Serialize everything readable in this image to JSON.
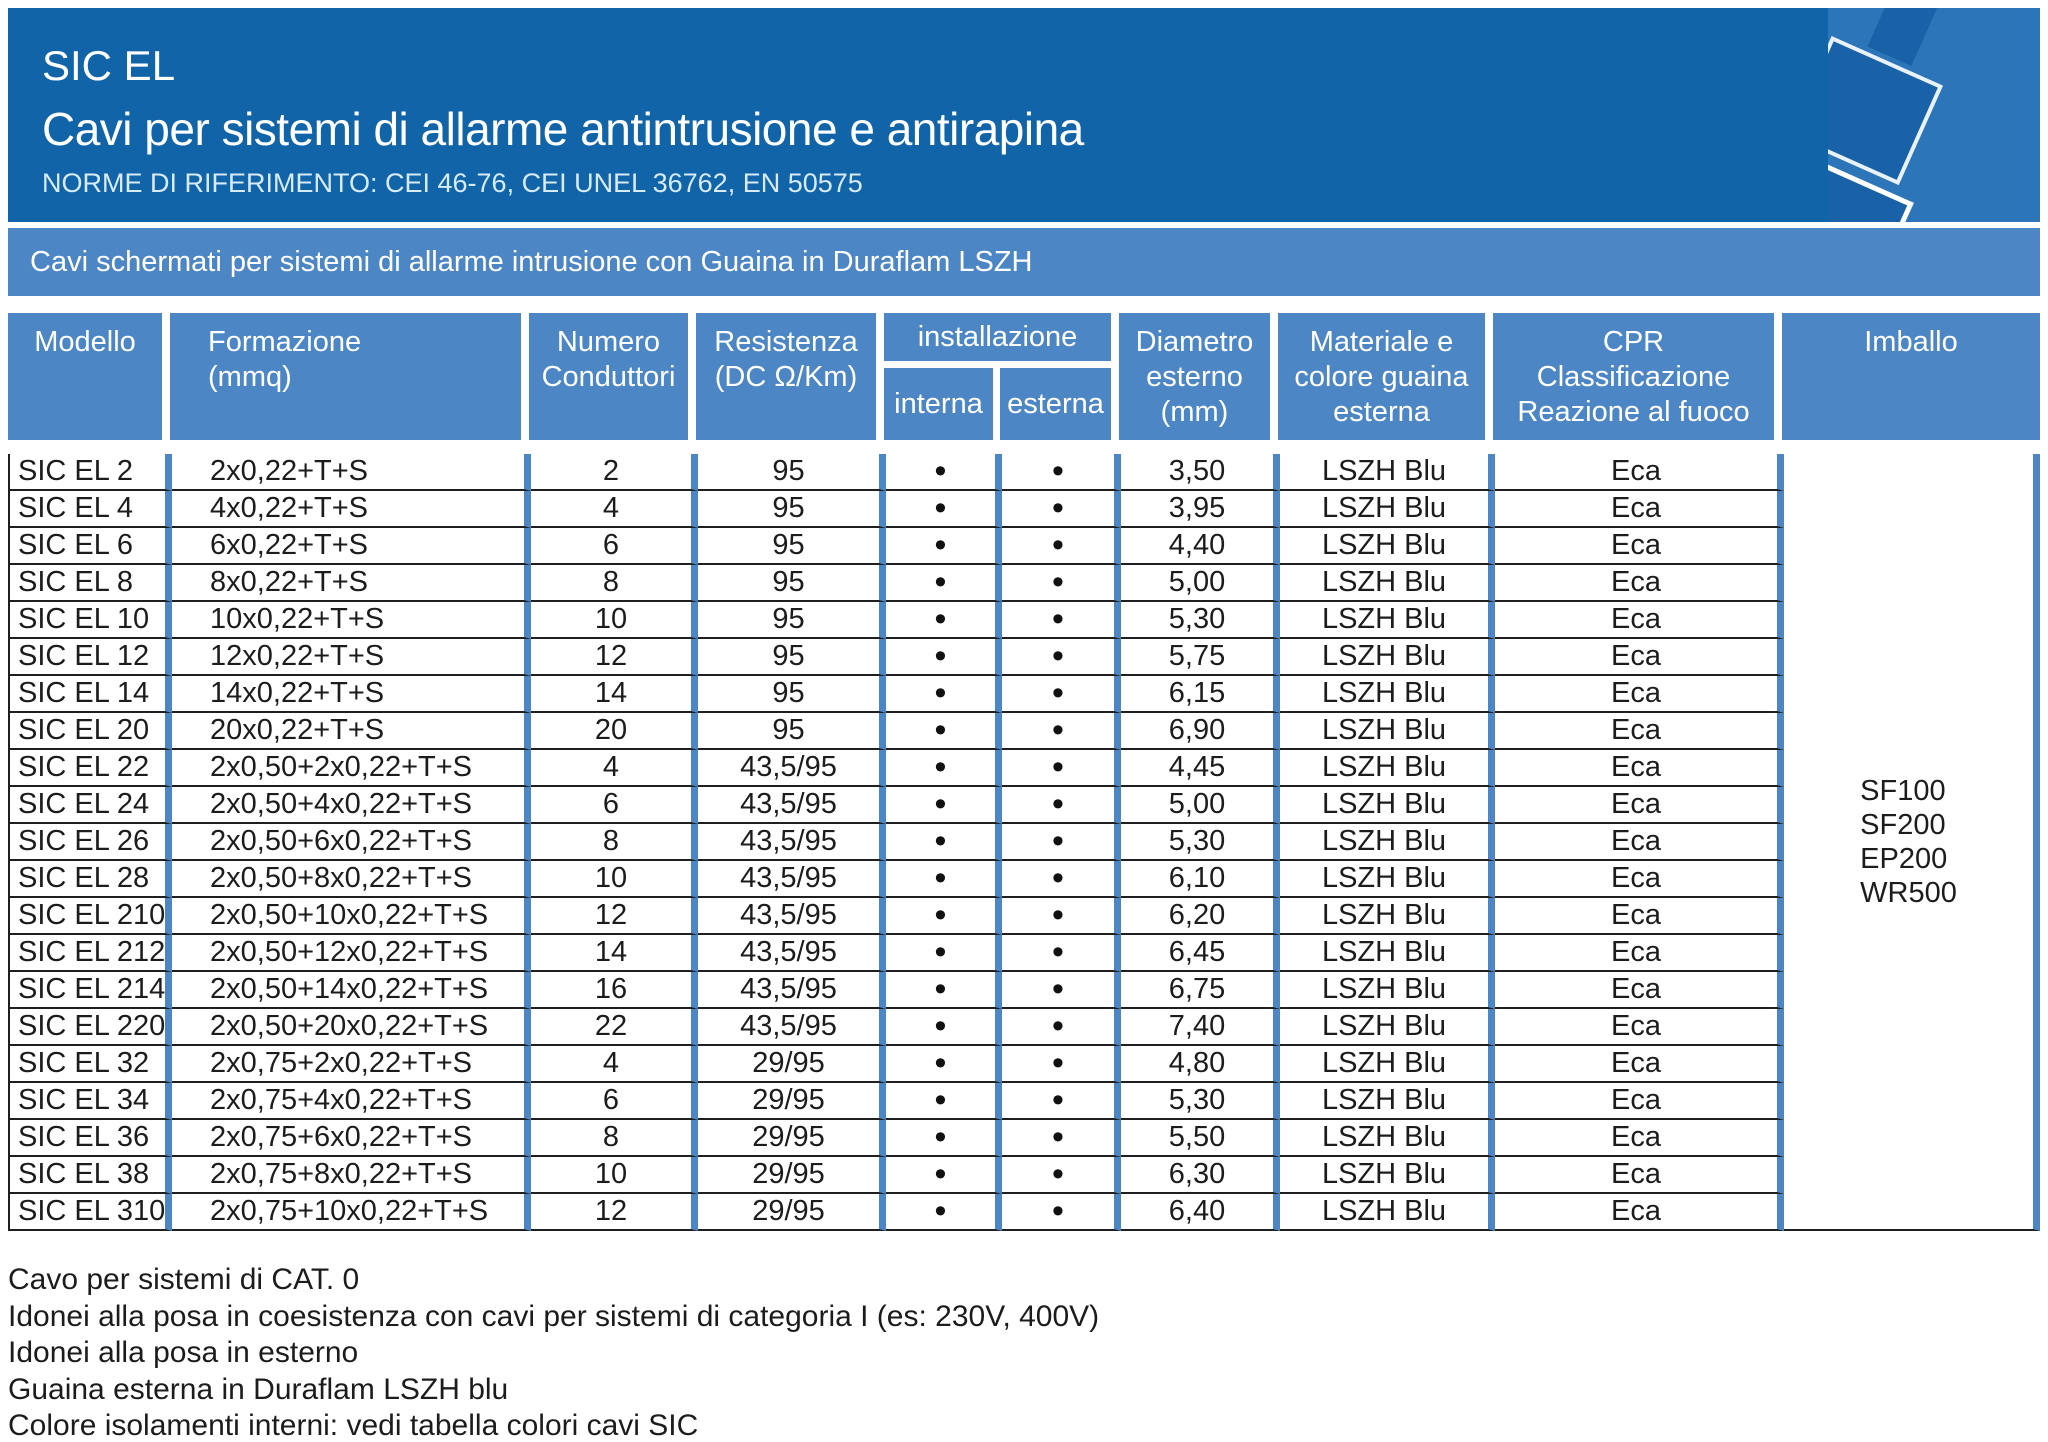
{
  "header": {
    "product": "SIC EL",
    "title": "Cavi per sistemi di allarme antintrusione e antirapina",
    "norms": "NORME DI RIFERIMENTO: CEI 46-76, CEI UNEL 36762, EN 50575"
  },
  "section_band": {
    "label": "Cavi schermati per sistemi di allarme intrusione con Guaina in Duraflam LSZH"
  },
  "table": {
    "head": {
      "modello": "Modello",
      "formazione": "Formazione\n(mmq)",
      "numero": "Numero\nConduttori",
      "resistenza": "Resistenza\n(DC Ω/Km)",
      "installazione": "installazione",
      "interna": "interna",
      "esterna": "esterna",
      "diametro": "Diametro\nesterno\n(mm)",
      "materiale": "Materiale e\ncolore guaina\nesterna",
      "cpr": "CPR\nClassificazione\nReazione al fuoco",
      "imballo": "Imballo"
    },
    "rows": [
      {
        "model": "SIC EL 2",
        "formation": "2x0,22+T+S",
        "conductors": "2",
        "resistance": "95",
        "internal": "•",
        "external": "•",
        "diameter": "3,50",
        "sheath": "LSZH Blu",
        "cpr": "Eca"
      },
      {
        "model": "SIC EL 4",
        "formation": "4x0,22+T+S",
        "conductors": "4",
        "resistance": "95",
        "internal": "•",
        "external": "•",
        "diameter": "3,95",
        "sheath": "LSZH Blu",
        "cpr": "Eca"
      },
      {
        "model": "SIC EL 6",
        "formation": "6x0,22+T+S",
        "conductors": "6",
        "resistance": "95",
        "internal": "•",
        "external": "•",
        "diameter": "4,40",
        "sheath": "LSZH Blu",
        "cpr": "Eca"
      },
      {
        "model": "SIC EL 8",
        "formation": "8x0,22+T+S",
        "conductors": "8",
        "resistance": "95",
        "internal": "•",
        "external": "•",
        "diameter": "5,00",
        "sheath": "LSZH Blu",
        "cpr": "Eca"
      },
      {
        "model": "SIC EL 10",
        "formation": "10x0,22+T+S",
        "conductors": "10",
        "resistance": "95",
        "internal": "•",
        "external": "•",
        "diameter": "5,30",
        "sheath": "LSZH Blu",
        "cpr": "Eca"
      },
      {
        "model": "SIC EL 12",
        "formation": "12x0,22+T+S",
        "conductors": "12",
        "resistance": "95",
        "internal": "•",
        "external": "•",
        "diameter": "5,75",
        "sheath": "LSZH Blu",
        "cpr": "Eca"
      },
      {
        "model": "SIC EL 14",
        "formation": "14x0,22+T+S",
        "conductors": "14",
        "resistance": "95",
        "internal": "•",
        "external": "•",
        "diameter": "6,15",
        "sheath": "LSZH Blu",
        "cpr": "Eca"
      },
      {
        "model": "SIC EL 20",
        "formation": "20x0,22+T+S",
        "conductors": "20",
        "resistance": "95",
        "internal": "•",
        "external": "•",
        "diameter": "6,90",
        "sheath": "LSZH Blu",
        "cpr": "Eca"
      },
      {
        "model": "SIC EL 22",
        "formation": "2x0,50+2x0,22+T+S",
        "conductors": "4",
        "resistance": "43,5/95",
        "internal": "•",
        "external": "•",
        "diameter": "4,45",
        "sheath": "LSZH Blu",
        "cpr": "Eca"
      },
      {
        "model": "SIC EL 24",
        "formation": "2x0,50+4x0,22+T+S",
        "conductors": "6",
        "resistance": "43,5/95",
        "internal": "•",
        "external": "•",
        "diameter": "5,00",
        "sheath": "LSZH Blu",
        "cpr": "Eca"
      },
      {
        "model": "SIC EL 26",
        "formation": "2x0,50+6x0,22+T+S",
        "conductors": "8",
        "resistance": "43,5/95",
        "internal": "•",
        "external": "•",
        "diameter": "5,30",
        "sheath": "LSZH Blu",
        "cpr": "Eca"
      },
      {
        "model": "SIC EL 28",
        "formation": "2x0,50+8x0,22+T+S",
        "conductors": "10",
        "resistance": "43,5/95",
        "internal": "•",
        "external": "•",
        "diameter": "6,10",
        "sheath": "LSZH Blu",
        "cpr": "Eca"
      },
      {
        "model": "SIC EL 210",
        "formation": "2x0,50+10x0,22+T+S",
        "conductors": "12",
        "resistance": "43,5/95",
        "internal": "•",
        "external": "•",
        "diameter": "6,20",
        "sheath": "LSZH Blu",
        "cpr": "Eca"
      },
      {
        "model": "SIC EL 212",
        "formation": "2x0,50+12x0,22+T+S",
        "conductors": "14",
        "resistance": "43,5/95",
        "internal": "•",
        "external": "•",
        "diameter": "6,45",
        "sheath": "LSZH Blu",
        "cpr": "Eca"
      },
      {
        "model": "SIC EL 214",
        "formation": "2x0,50+14x0,22+T+S",
        "conductors": "16",
        "resistance": "43,5/95",
        "internal": "•",
        "external": "•",
        "diameter": "6,75",
        "sheath": "LSZH Blu",
        "cpr": "Eca"
      },
      {
        "model": "SIC EL 220",
        "formation": "2x0,50+20x0,22+T+S",
        "conductors": "22",
        "resistance": "43,5/95",
        "internal": "•",
        "external": "•",
        "diameter": "7,40",
        "sheath": "LSZH Blu",
        "cpr": "Eca"
      },
      {
        "model": "SIC EL 32",
        "formation": "2x0,75+2x0,22+T+S",
        "conductors": "4",
        "resistance": "29/95",
        "internal": "•",
        "external": "•",
        "diameter": "4,80",
        "sheath": "LSZH Blu",
        "cpr": "Eca"
      },
      {
        "model": "SIC EL 34",
        "formation": "2x0,75+4x0,22+T+S",
        "conductors": "6",
        "resistance": "29/95",
        "internal": "•",
        "external": "•",
        "diameter": "5,30",
        "sheath": "LSZH Blu",
        "cpr": "Eca"
      },
      {
        "model": "SIC EL 36",
        "formation": "2x0,75+6x0,22+T+S",
        "conductors": "8",
        "resistance": "29/95",
        "internal": "•",
        "external": "•",
        "diameter": "5,50",
        "sheath": "LSZH Blu",
        "cpr": "Eca"
      },
      {
        "model": "SIC EL 38",
        "formation": "2x0,75+8x0,22+T+S",
        "conductors": "10",
        "resistance": "29/95",
        "internal": "•",
        "external": "•",
        "diameter": "6,30",
        "sheath": "LSZH Blu",
        "cpr": "Eca"
      },
      {
        "model": "SIC EL 310",
        "formation": "2x0,75+10x0,22+T+S",
        "conductors": "12",
        "resistance": "29/95",
        "internal": "•",
        "external": "•",
        "diameter": "6,40",
        "sheath": "LSZH Blu",
        "cpr": "Eca"
      }
    ],
    "packaging": [
      "SF100",
      "SF200",
      "EP200",
      "WR500"
    ]
  },
  "footer": {
    "lines": [
      "Cavo per sistemi di CAT. 0",
      "Idonei alla posa in coesistenza con cavi per sistemi di categoria I (es: 230V, 400V)",
      "Idonei alla posa in esterno",
      "Guaina esterna in Duraflam LSZH blu",
      "Colore isolamenti interni: vedi tabella colori cavi SIC"
    ]
  },
  "colors": {
    "dark_blue": "#1164a8",
    "medium_blue": "#4d86c5",
    "illustration_blue": "#2d75b9",
    "text": "#1c1c1c"
  }
}
